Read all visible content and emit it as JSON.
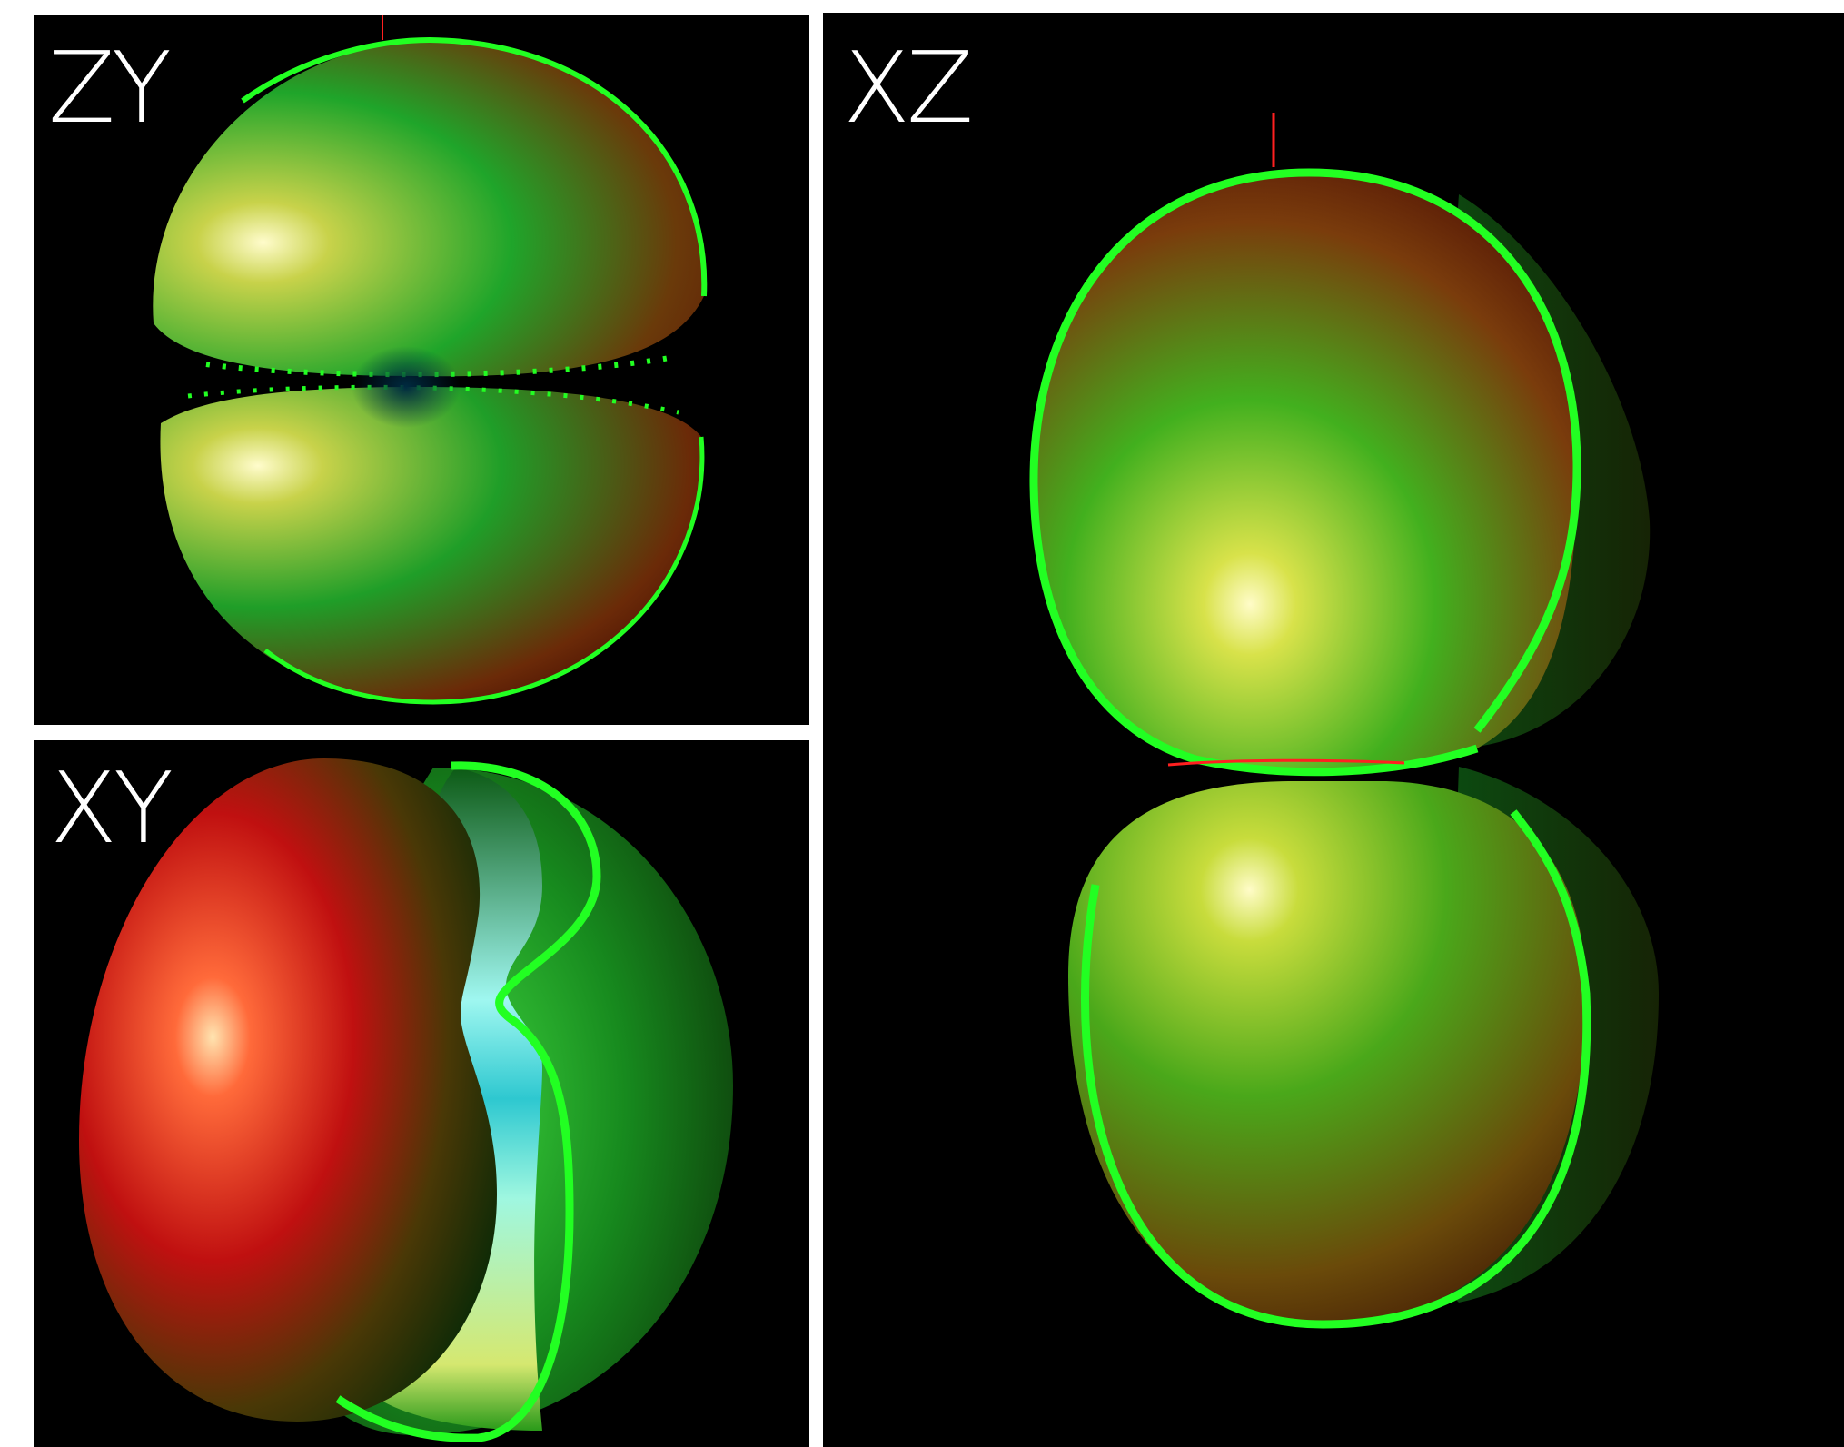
{
  "panels": {
    "zy": {
      "label": "ZY"
    },
    "xy": {
      "label": "XY"
    },
    "xz": {
      "label": "XZ"
    }
  },
  "colors": {
    "background": "#000000",
    "separator": "#ffffff",
    "outline": "#22ff22",
    "surface_warm": "#9a2a0c",
    "surface_green": "#1ec41e",
    "highlight": "#fffbc8",
    "axis": "#ff2020"
  }
}
